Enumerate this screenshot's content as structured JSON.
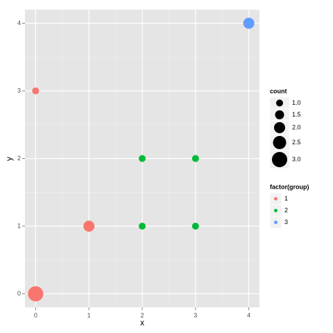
{
  "chart_data": {
    "type": "scatter",
    "x_label": "x",
    "y_label": "y",
    "xlim": [
      -0.2,
      4.2
    ],
    "ylim": [
      -0.2,
      4.2
    ],
    "xticks": [
      0,
      1,
      2,
      3,
      4
    ],
    "yticks": [
      0,
      1,
      2,
      3,
      4
    ],
    "x_minor": [
      0.5,
      1.5,
      2.5,
      3.5
    ],
    "y_minor": [
      0.5,
      1.5,
      2.5,
      3.5
    ],
    "grid": true,
    "size_legend": {
      "title": "count",
      "values": [
        {
          "value": 1,
          "label": "1.0"
        },
        {
          "value": 1.5,
          "label": "1.5"
        },
        {
          "value": 2,
          "label": "2.0"
        },
        {
          "value": 2.5,
          "label": "2.5"
        },
        {
          "value": 3,
          "label": "3.0"
        }
      ]
    },
    "color_legend_title": "factor(group)",
    "legend_position": "right",
    "series": [
      {
        "name": "1",
        "color": "#f8766d",
        "x": [
          0,
          0,
          1
        ],
        "y": [
          0,
          3,
          1
        ],
        "sizes": [
          3,
          1,
          2
        ]
      },
      {
        "name": "2",
        "color": "#00ba38",
        "x": [
          2,
          3,
          2,
          3
        ],
        "y": [
          2,
          2,
          1,
          1
        ],
        "sizes": [
          1,
          1,
          1,
          1
        ]
      },
      {
        "name": "3",
        "color": "#619cff",
        "x": [
          4
        ],
        "y": [
          4
        ],
        "sizes": [
          2
        ]
      }
    ]
  }
}
